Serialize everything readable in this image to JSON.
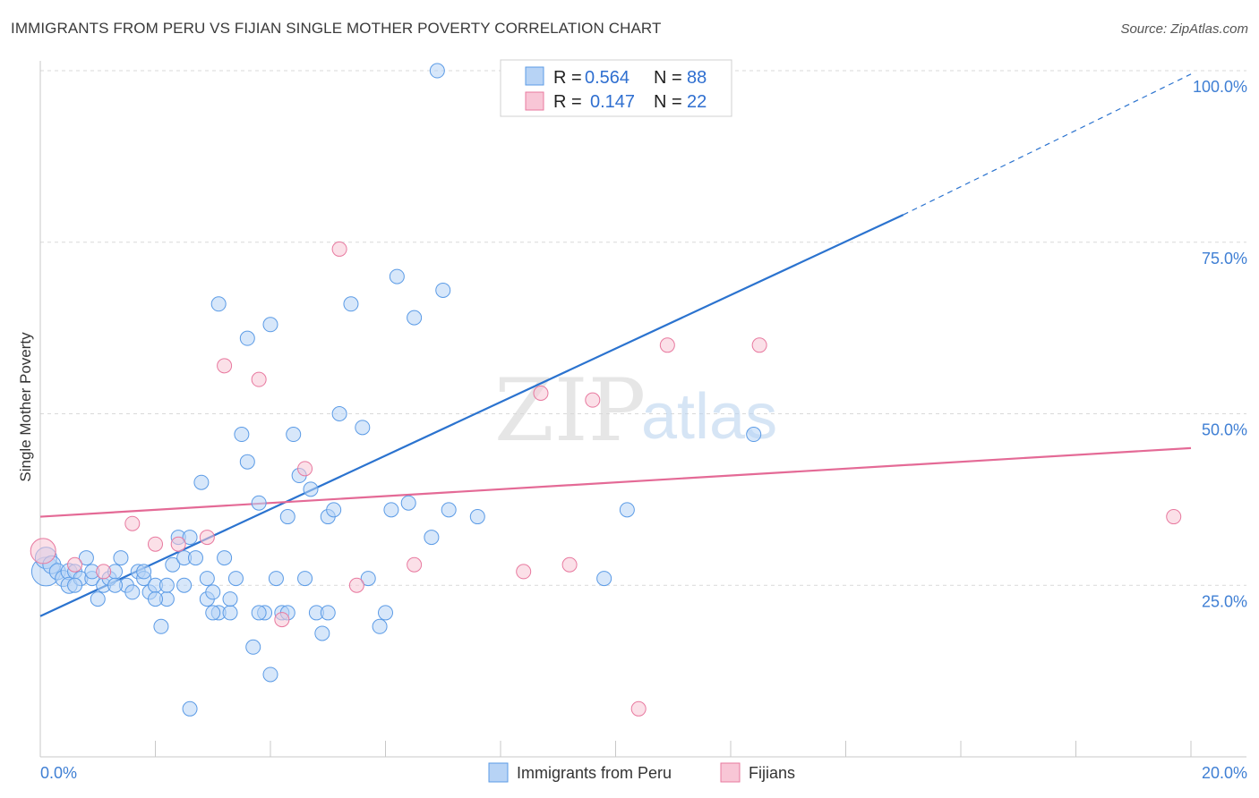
{
  "title": "IMMIGRANTS FROM PERU VS FIJIAN SINGLE MOTHER POVERTY CORRELATION CHART",
  "source": "Source: ZipAtlas.com",
  "watermark": {
    "zip": "ZIP",
    "atlas": "atlas"
  },
  "colors": {
    "blue": "#5b9be6",
    "blue_fill": "#b7d3f5",
    "pink": "#e8799f",
    "pink_fill": "#f8c6d6",
    "blue_line": "#2b73cf",
    "pink_line": "#e46a96",
    "grid": "#d9d9d9",
    "axis_text": "#3f7fd4"
  },
  "legend": {
    "rows": [
      {
        "r_label": "R =",
        "r_value": "0.564",
        "n_label": "N =",
        "n_value": "88",
        "series": "blue"
      },
      {
        "r_label": "R =",
        "r_value": "0.147",
        "n_label": "N =",
        "n_value": "22",
        "series": "pink"
      }
    ]
  },
  "chart_data": {
    "type": "scatter",
    "title": "IMMIGRANTS FROM PERU VS FIJIAN SINGLE MOTHER POVERTY CORRELATION CHART",
    "xlabel": "",
    "ylabel": "Single Mother Poverty",
    "xlim": [
      0,
      20
    ],
    "ylim": [
      0,
      103
    ],
    "x_tick_labels": [
      {
        "value": 0,
        "label": "0.0%"
      },
      {
        "value": 20,
        "label": "20.0%"
      }
    ],
    "y_tick_labels": [
      {
        "value": 25,
        "label": "25.0%"
      },
      {
        "value": 50,
        "label": "50.0%"
      },
      {
        "value": 75,
        "label": "75.0%"
      },
      {
        "value": 100,
        "label": "100.0%"
      }
    ],
    "legend_items": [
      "Immigrants from Peru",
      "Fijians"
    ],
    "series": [
      {
        "name": "Immigrants from Peru",
        "color": "blue",
        "r": 0.564,
        "n": 88,
        "trend": {
          "x0": 0,
          "y0": 20.5,
          "x1": 15,
          "y1": 79,
          "dash_to_x": 20,
          "dash_to_y": 99.5
        },
        "points": [
          [
            0.1,
            27,
            16
          ],
          [
            0.1,
            29,
            12
          ],
          [
            0.2,
            28,
            10
          ],
          [
            0.3,
            27,
            9
          ],
          [
            0.4,
            26,
            9
          ],
          [
            0.5,
            27,
            9
          ],
          [
            0.5,
            25,
            9
          ],
          [
            0.6,
            27,
            8
          ],
          [
            0.7,
            26,
            8
          ],
          [
            0.8,
            29,
            8
          ],
          [
            0.9,
            26,
            8
          ],
          [
            1.0,
            23,
            8
          ],
          [
            1.1,
            25,
            8
          ],
          [
            1.2,
            26,
            8
          ],
          [
            1.3,
            27,
            8
          ],
          [
            1.4,
            29,
            8
          ],
          [
            1.5,
            25,
            8
          ],
          [
            1.6,
            24,
            8
          ],
          [
            1.7,
            27,
            8
          ],
          [
            1.8,
            26,
            8
          ],
          [
            1.9,
            24,
            8
          ],
          [
            2.0,
            25,
            8
          ],
          [
            2.1,
            19,
            8
          ],
          [
            2.2,
            23,
            8
          ],
          [
            2.2,
            25,
            8
          ],
          [
            2.3,
            28,
            8
          ],
          [
            2.4,
            32,
            8
          ],
          [
            2.5,
            29,
            8
          ],
          [
            2.6,
            32,
            8
          ],
          [
            2.6,
            7,
            8
          ],
          [
            2.7,
            29,
            8
          ],
          [
            2.8,
            40,
            8
          ],
          [
            2.9,
            26,
            8
          ],
          [
            2.9,
            23,
            8
          ],
          [
            3.0,
            24,
            8
          ],
          [
            3.1,
            21,
            8
          ],
          [
            3.2,
            29,
            8
          ],
          [
            3.3,
            21,
            8
          ],
          [
            3.1,
            66,
            8
          ],
          [
            3.3,
            23,
            8
          ],
          [
            3.4,
            26,
            8
          ],
          [
            3.6,
            61,
            8
          ],
          [
            3.5,
            47,
            8
          ],
          [
            3.7,
            16,
            8
          ],
          [
            3.6,
            43,
            8
          ],
          [
            3.8,
            37,
            8
          ],
          [
            3.9,
            21,
            8
          ],
          [
            4.0,
            12,
            8
          ],
          [
            4.1,
            26,
            8
          ],
          [
            4.2,
            21,
            8
          ],
          [
            4.3,
            35,
            8
          ],
          [
            4.4,
            47,
            8
          ],
          [
            4.5,
            41,
            8
          ],
          [
            4.6,
            26,
            8
          ],
          [
            4.7,
            39,
            8
          ],
          [
            4.8,
            21,
            8
          ],
          [
            4.9,
            18,
            8
          ],
          [
            5.0,
            35,
            8
          ],
          [
            5.1,
            36,
            8
          ],
          [
            5.2,
            50,
            8
          ],
          [
            5.4,
            66,
            8
          ],
          [
            5.6,
            48,
            8
          ],
          [
            5.7,
            26,
            8
          ],
          [
            5.9,
            19,
            8
          ],
          [
            6.0,
            21,
            8
          ],
          [
            6.1,
            36,
            8
          ],
          [
            6.2,
            70,
            8
          ],
          [
            6.4,
            37,
            8
          ],
          [
            6.5,
            64,
            8
          ],
          [
            6.8,
            32,
            8
          ],
          [
            7.0,
            68,
            8
          ],
          [
            7.1,
            36,
            8
          ],
          [
            7.6,
            35,
            8
          ],
          [
            4.0,
            63,
            8
          ],
          [
            6.9,
            100,
            8
          ],
          [
            9.8,
            26,
            8
          ],
          [
            10.2,
            36,
            8
          ],
          [
            12.4,
            47,
            8
          ],
          [
            1.8,
            27,
            8
          ],
          [
            2.5,
            25,
            8
          ],
          [
            0.9,
            27,
            8
          ],
          [
            1.3,
            25,
            8
          ],
          [
            0.6,
            25,
            8
          ],
          [
            2.0,
            23,
            8
          ],
          [
            3.0,
            21,
            8
          ],
          [
            4.3,
            21,
            8
          ],
          [
            5.0,
            21,
            8
          ],
          [
            3.8,
            21,
            8
          ]
        ]
      },
      {
        "name": "Fijians",
        "color": "pink",
        "r": 0.147,
        "n": 22,
        "trend": {
          "x0": 0,
          "y0": 35,
          "x1": 20,
          "y1": 45
        },
        "points": [
          [
            0.05,
            30,
            14
          ],
          [
            0.6,
            28,
            8
          ],
          [
            1.1,
            27,
            8
          ],
          [
            1.6,
            34,
            8
          ],
          [
            2.0,
            31,
            8
          ],
          [
            2.4,
            31,
            8
          ],
          [
            2.9,
            32,
            8
          ],
          [
            3.2,
            57,
            8
          ],
          [
            3.8,
            55,
            8
          ],
          [
            4.2,
            20,
            8
          ],
          [
            4.6,
            42,
            8
          ],
          [
            5.2,
            74,
            8
          ],
          [
            5.5,
            25,
            8
          ],
          [
            6.5,
            28,
            8
          ],
          [
            8.4,
            27,
            8
          ],
          [
            8.7,
            53,
            8
          ],
          [
            9.2,
            28,
            8
          ],
          [
            9.6,
            52,
            8
          ],
          [
            10.4,
            7,
            8
          ],
          [
            10.9,
            60,
            8
          ],
          [
            12.5,
            60,
            8
          ],
          [
            19.7,
            35,
            8
          ]
        ]
      }
    ]
  }
}
